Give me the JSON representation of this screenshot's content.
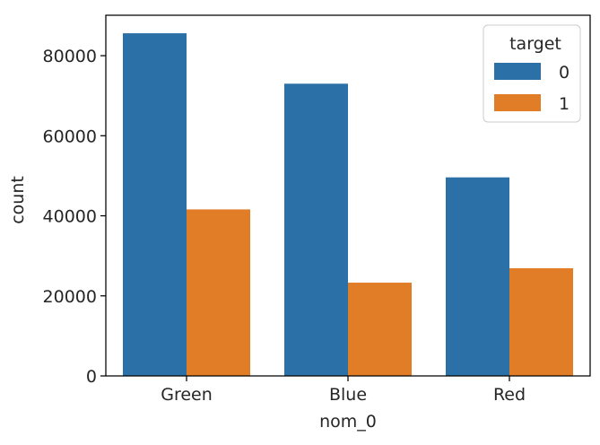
{
  "chart_data": {
    "type": "bar",
    "title": "",
    "xlabel": "nom_0",
    "ylabel": "count",
    "categories": [
      "Green",
      "Blue",
      "Red"
    ],
    "series": [
      {
        "name": "0",
        "values": [
          85600,
          73000,
          49600
        ],
        "color": "#2b70a6"
      },
      {
        "name": "1",
        "values": [
          41600,
          23300,
          26900
        ],
        "color": "#e27d27"
      }
    ],
    "ylim": [
      0,
      90100
    ],
    "yticks": [
      0,
      20000,
      40000,
      60000,
      80000
    ],
    "grid": false,
    "legend": {
      "title": "target",
      "placement": "top-right"
    }
  }
}
